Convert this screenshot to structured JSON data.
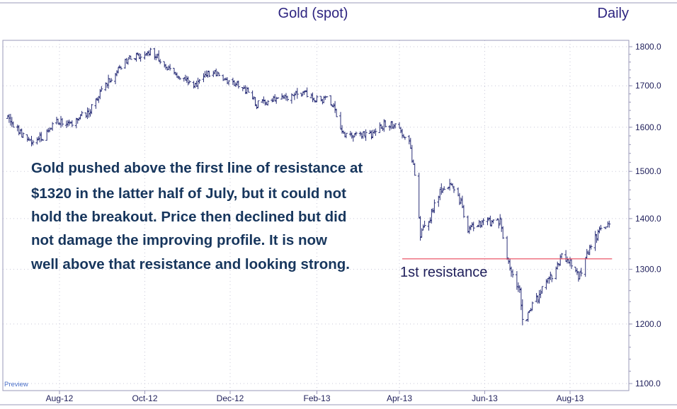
{
  "chart_data": {
    "type": "ohlc",
    "title": "Gold (spot)",
    "period_label": "Daily",
    "preview_label": "Preview",
    "colors": {
      "bars": "#2a2f78",
      "resistance": "#e8455a",
      "grid": "#c8c8d8",
      "frame": "#9a98b8",
      "text": "#2d2480",
      "annotation": "#17365d"
    },
    "y_axis": {
      "ylim": [
        1075,
        1825
      ],
      "ticks": [
        1100,
        1200,
        1300,
        1400,
        1500,
        1600,
        1700,
        1800
      ],
      "tick_labels": [
        "1100.0",
        "1200.0",
        "1300.0",
        "1400.0",
        "1500.0",
        "1600.0",
        "1700.0",
        "1800.0"
      ],
      "scale": "log",
      "grid": true
    },
    "x_axis": {
      "start": "2012-06-25",
      "end": "2013-09-05",
      "ticks": [
        "2012-08-01",
        "2012-10-01",
        "2012-12-01",
        "2013-02-01",
        "2013-04-01",
        "2013-06-01",
        "2013-08-01"
      ],
      "tick_labels": [
        "Aug-12",
        "Oct-12",
        "Dec-12",
        "Feb-13",
        "Apr-13",
        "Jun-13",
        "Aug-13"
      ],
      "grid": true
    },
    "resistance": {
      "level": 1320,
      "from": "2013-04-03",
      "to": "2013-08-31",
      "label": "1st resistance"
    },
    "annotation": {
      "lines": [
        "Gold pushed above the first line of resistance at",
        "$1320 in the latter half of July, but it could not",
        "hold the breakout. Price then declined but did",
        "not damage the improving profile. It is now",
        "well above that resistance and looking strong."
      ]
    },
    "anchors": [
      [
        "2012-06-25",
        1620
      ],
      [
        "2012-07-05",
        1582
      ],
      [
        "2012-07-12",
        1570
      ],
      [
        "2012-07-20",
        1578
      ],
      [
        "2012-07-30",
        1615
      ],
      [
        "2012-08-10",
        1612
      ],
      [
        "2012-08-22",
        1638
      ],
      [
        "2012-08-31",
        1690
      ],
      [
        "2012-09-10",
        1735
      ],
      [
        "2012-09-20",
        1772
      ],
      [
        "2012-10-01",
        1780
      ],
      [
        "2012-10-05",
        1790
      ],
      [
        "2012-10-12",
        1763
      ],
      [
        "2012-10-22",
        1728
      ],
      [
        "2012-10-31",
        1712
      ],
      [
        "2012-11-07",
        1700
      ],
      [
        "2012-11-12",
        1730
      ],
      [
        "2012-11-21",
        1730
      ],
      [
        "2012-11-30",
        1711
      ],
      [
        "2012-12-10",
        1700
      ],
      [
        "2012-12-20",
        1655
      ],
      [
        "2012-12-31",
        1665
      ],
      [
        "2013-01-10",
        1668
      ],
      [
        "2013-01-20",
        1685
      ],
      [
        "2013-01-31",
        1665
      ],
      [
        "2013-02-08",
        1668
      ],
      [
        "2013-02-14",
        1640
      ],
      [
        "2013-02-20",
        1580
      ],
      [
        "2013-02-28",
        1580
      ],
      [
        "2013-03-12",
        1585
      ],
      [
        "2013-03-22",
        1608
      ],
      [
        "2013-03-31",
        1600
      ],
      [
        "2013-04-08",
        1568
      ],
      [
        "2013-04-12",
        1490
      ],
      [
        "2013-04-16",
        1370
      ],
      [
        "2013-04-22",
        1395
      ],
      [
        "2013-04-30",
        1460
      ],
      [
        "2013-05-08",
        1468
      ],
      [
        "2013-05-14",
        1440
      ],
      [
        "2013-05-20",
        1380
      ],
      [
        "2013-05-31",
        1395
      ],
      [
        "2013-06-07",
        1390
      ],
      [
        "2013-06-12",
        1395
      ],
      [
        "2013-06-20",
        1290
      ],
      [
        "2013-06-26",
        1255
      ],
      [
        "2013-06-28",
        1205
      ],
      [
        "2013-07-05",
        1230
      ],
      [
        "2013-07-12",
        1260
      ],
      [
        "2013-07-20",
        1292
      ],
      [
        "2013-07-26",
        1328
      ],
      [
        "2013-08-02",
        1310
      ],
      [
        "2013-08-07",
        1286
      ],
      [
        "2013-08-13",
        1330
      ],
      [
        "2013-08-20",
        1365
      ],
      [
        "2013-08-26",
        1385
      ],
      [
        "2013-08-29",
        1392
      ]
    ]
  }
}
